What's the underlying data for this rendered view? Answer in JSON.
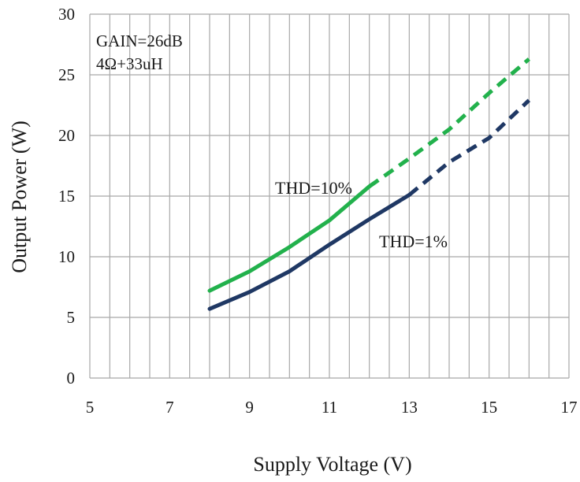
{
  "chart_data": {
    "type": "line",
    "xlabel": "Supply Voltage  (V)",
    "ylabel": "Output Power (W)",
    "xlim": [
      5,
      17
    ],
    "ylim": [
      0,
      30
    ],
    "x_ticks": [
      5,
      7,
      9,
      11,
      13,
      15,
      17
    ],
    "y_ticks": [
      0,
      5,
      10,
      15,
      20,
      25,
      30
    ],
    "x_minor_step": 0.5,
    "grid": true,
    "annotations": [
      "GAIN=26dB",
      "4Ω+33uH"
    ],
    "series": [
      {
        "name": "THD=10%",
        "color": "#22b14c",
        "x": [
          8,
          9,
          10,
          11,
          12,
          13,
          14,
          15,
          16
        ],
        "y": [
          7.2,
          8.8,
          10.8,
          13.0,
          15.8,
          18.1,
          20.5,
          23.5,
          26.3
        ],
        "dashed_from_x": 12
      },
      {
        "name": "THD=1%",
        "color": "#1f3864",
        "x": [
          8,
          9,
          10,
          11,
          12,
          13,
          14,
          15,
          16
        ],
        "y": [
          5.7,
          7.1,
          8.8,
          11.0,
          13.1,
          15.1,
          17.8,
          19.8,
          22.9
        ],
        "dashed_from_x": 13
      }
    ]
  }
}
